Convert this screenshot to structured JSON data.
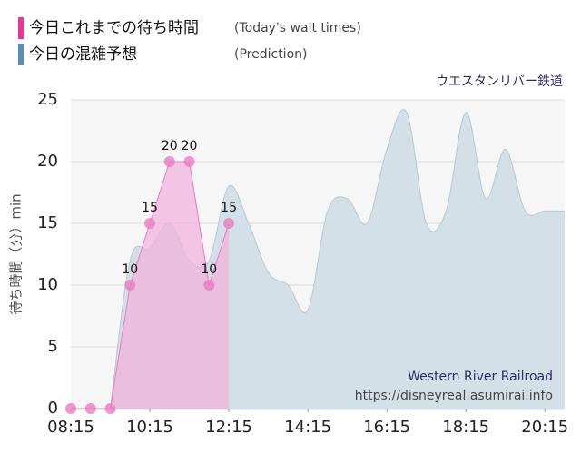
{
  "chart_data": {
    "type": "area_line",
    "legend": [
      {
        "series": 0,
        "note": "(Today's wait times)"
      },
      {
        "series": 1,
        "note": "(Prediction)"
      }
    ],
    "subtitle": "ウエスタンリバー鉄道",
    "ylabel": "待ち時間（分）min",
    "annotations": [
      "Western River Railroad",
      "https://disneyreal.asumirai.info"
    ],
    "x": [
      "08:15",
      "08:45",
      "09:15",
      "09:45",
      "10:15",
      "10:45",
      "11:15",
      "11:45",
      "12:15",
      "12:45",
      "13:15",
      "13:45",
      "14:15",
      "14:45",
      "15:15",
      "15:45",
      "16:15",
      "16:45",
      "17:15",
      "17:45",
      "18:15",
      "18:45",
      "19:15",
      "19:45",
      "20:15",
      "20:45"
    ],
    "series": [
      {
        "name": "今日これまでの待ち時間",
        "color": "#e87dc0",
        "fill": "#f2b3dc",
        "values": [
          0,
          0,
          0,
          10,
          15,
          20,
          20,
          10,
          15,
          null,
          null,
          null,
          null,
          null,
          null,
          null,
          null,
          null,
          null,
          null,
          null,
          null,
          null,
          null,
          null,
          null
        ]
      },
      {
        "name": "今日の混雑予想",
        "color": "#5b8db8",
        "fill": "#d4e0e8",
        "values": [
          null,
          null,
          0,
          12,
          13,
          15,
          12,
          12,
          18,
          15,
          11,
          10,
          8,
          16,
          17,
          15,
          21,
          24,
          15,
          16,
          24,
          17,
          21,
          16,
          16,
          16
        ]
      }
    ],
    "xlim": [
      "08:15",
      "20:45"
    ],
    "xticks": [
      "08:15",
      "10:15",
      "12:15",
      "14:15",
      "16:15",
      "18:15",
      "20:15"
    ],
    "ylim": [
      0,
      25
    ],
    "yticks": [
      0,
      5,
      10,
      15,
      20,
      25
    ],
    "grid": true
  }
}
